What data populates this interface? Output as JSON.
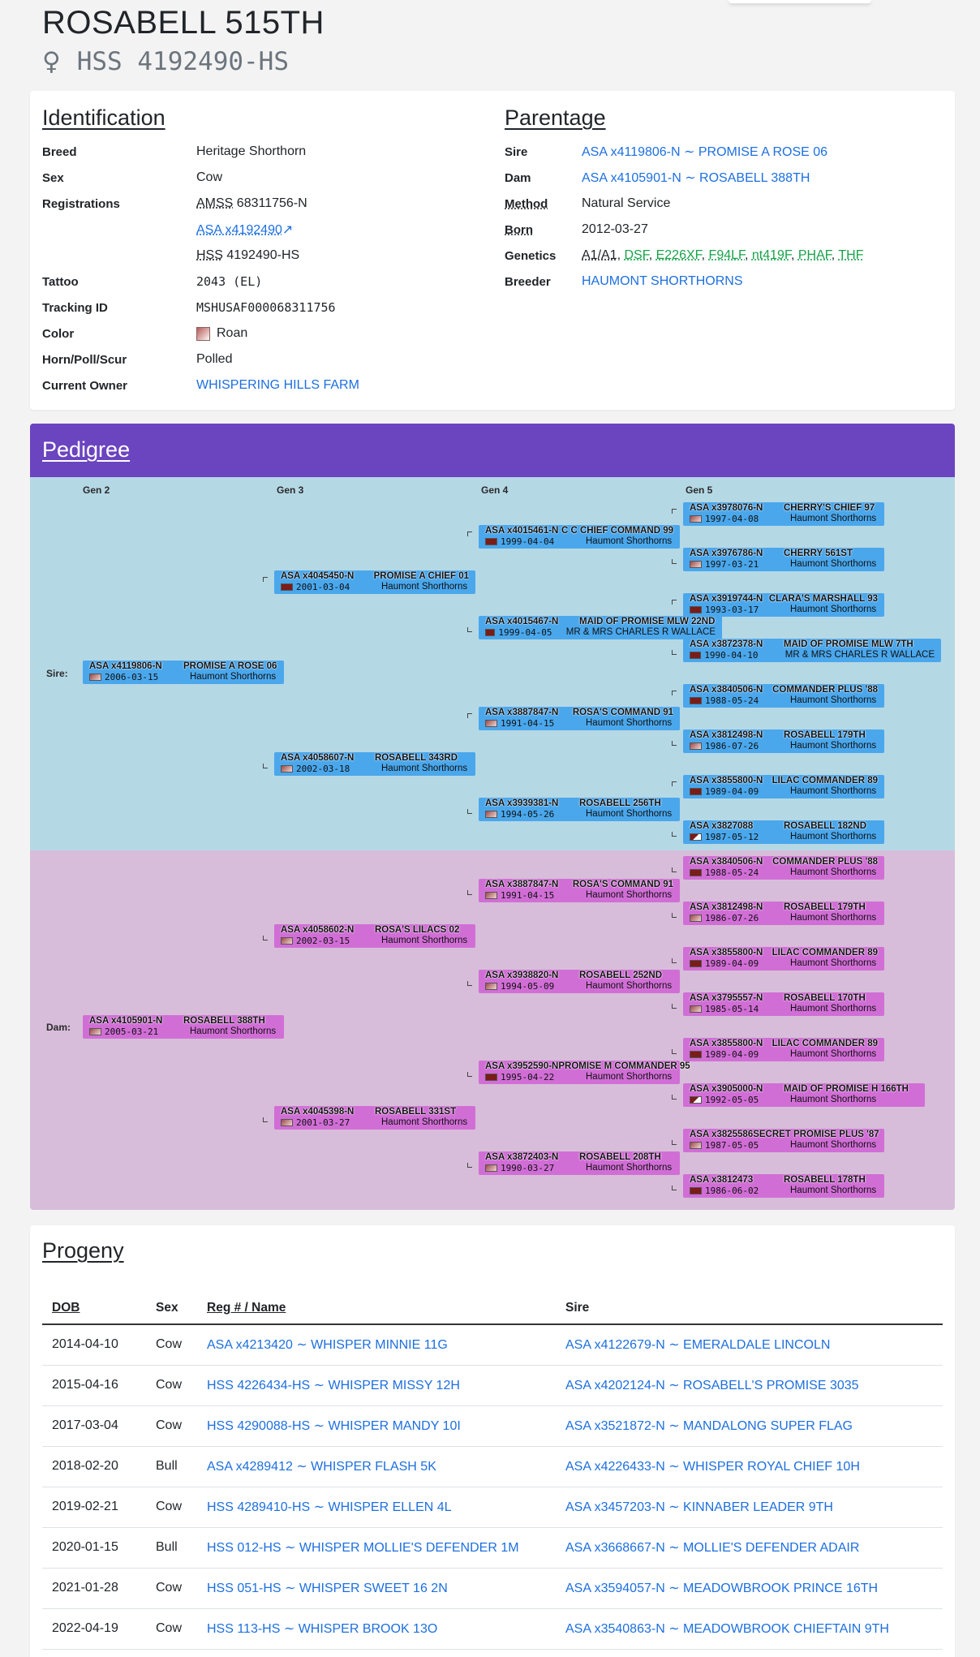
{
  "header": {
    "title": "ROSABELL 515TH",
    "sex_symbol": "♀",
    "id": "HSS 4192490-HS"
  },
  "identification": {
    "heading": "Identification",
    "breed_label": "Breed",
    "breed": "Heritage Shorthorn",
    "sex_label": "Sex",
    "sex": "Cow",
    "reg_label": "Registrations",
    "reg1_prefix": "AMSS",
    "reg1_value": "68311756-N",
    "reg2": "ASA x4192490",
    "reg3_prefix": "HSS",
    "reg3_value": "4192490-HS",
    "tattoo_label": "Tattoo",
    "tattoo": "2043 (EL)",
    "tracking_label": "Tracking ID",
    "tracking": "MSHUSAF000068311756",
    "color_label": "Color",
    "color": "Roan",
    "horn_label": "Horn/Poll/Scur",
    "horn": "Polled",
    "owner_label": "Current Owner",
    "owner": "WHISPERING HILLS FARM"
  },
  "parentage": {
    "heading": "Parentage",
    "sire_label": "Sire",
    "sire": "ASA x4119806-N ∼ PROMISE A ROSE 06",
    "dam_label": "Dam",
    "dam": "ASA x4105901-N ∼ ROSABELL 388TH",
    "method_label": "Method",
    "method": "Natural Service",
    "born_label": "Born",
    "born": "2012-03-27",
    "genetics_label": "Genetics",
    "genetics": [
      "A1/A1",
      "DSF",
      "E226XF",
      "F94LF",
      "nt419F",
      "PHAF",
      "THF"
    ],
    "breeder_label": "Breeder",
    "breeder": "HAUMONT SHORTHORNS"
  },
  "pedigree": {
    "heading": "Pedigree",
    "gen_labels": [
      "Gen 2",
      "Gen 3",
      "Gen 4",
      "Gen 5"
    ],
    "sire_label": "Sire:",
    "dam_label": "Dam:",
    "nodes": [
      {
        "reg": "ASA x4119806-N",
        "name": "PROMISE A ROSE 06",
        "date": "2006-03-15",
        "breeder": "Haumont Shorthorns"
      },
      {
        "reg": "ASA x4045450-N",
        "name": "PROMISE A CHIEF 01",
        "date": "2001-03-04",
        "breeder": "Haumont Shorthorns"
      },
      {
        "reg": "ASA x4058607-N",
        "name": "ROSABELL 343RD",
        "date": "2002-03-18",
        "breeder": "Haumont Shorthorns"
      },
      {
        "reg": "ASA x4015461-N",
        "name": "C C CHIEF COMMAND 99",
        "date": "1999-04-04",
        "breeder": "Haumont Shorthorns"
      },
      {
        "reg": "ASA x4015467-N",
        "name": "MAID OF PROMISE MLW 22ND",
        "date": "1999-04-05",
        "breeder": "MR & MRS CHARLES R WALLACE"
      },
      {
        "reg": "ASA x3887847-N",
        "name": "ROSA'S COMMAND 91",
        "date": "1991-04-15",
        "breeder": "Haumont Shorthorns"
      },
      {
        "reg": "ASA x3939381-N",
        "name": "ROSABELL 256TH",
        "date": "1994-05-26",
        "breeder": "Haumont Shorthorns"
      },
      {
        "reg": "ASA x3978076-N",
        "name": "CHERRY'S CHIEF 97",
        "date": "1997-04-08",
        "breeder": "Haumont Shorthorns"
      },
      {
        "reg": "ASA x3976786-N",
        "name": "CHERRY 561ST",
        "date": "1997-03-21",
        "breeder": "Haumont Shorthorns"
      },
      {
        "reg": "ASA x3919744-N",
        "name": "CLARA'S MARSHALL 93",
        "date": "1993-03-17",
        "breeder": "Haumont Shorthorns"
      },
      {
        "reg": "ASA x3872378-N",
        "name": "MAID OF PROMISE MLW 7TH",
        "date": "1990-04-10",
        "breeder": "MR & MRS CHARLES R WALLACE"
      },
      {
        "reg": "ASA x3840506-N",
        "name": "COMMANDER PLUS '88",
        "date": "1988-05-24",
        "breeder": "Haumont Shorthorns"
      },
      {
        "reg": "ASA x3812498-N",
        "name": "ROSABELL 179TH",
        "date": "1986-07-26",
        "breeder": "Haumont Shorthorns"
      },
      {
        "reg": "ASA x3855800-N",
        "name": "LILAC COMMANDER 89",
        "date": "1989-04-09",
        "breeder": "Haumont Shorthorns"
      },
      {
        "reg": "ASA x3827088",
        "name": "ROSABELL 182ND",
        "date": "1987-05-12",
        "breeder": "Haumont Shorthorns"
      },
      {
        "reg": "ASA x4105901-N",
        "name": "ROSABELL 388TH",
        "date": "2005-03-21",
        "breeder": "Haumont Shorthorns"
      },
      {
        "reg": "ASA x4058602-N",
        "name": "ROSA'S LILACS 02",
        "date": "2002-03-15",
        "breeder": "Haumont Shorthorns"
      },
      {
        "reg": "ASA x4045398-N",
        "name": "ROSABELL 331ST",
        "date": "2001-03-27",
        "breeder": "Haumont Shorthorns"
      },
      {
        "reg": "ASA x3887847-N",
        "name": "ROSA'S COMMAND 91",
        "date": "1991-04-15",
        "breeder": "Haumont Shorthorns"
      },
      {
        "reg": "ASA x3938820-N",
        "name": "ROSABELL 252ND",
        "date": "1994-05-09",
        "breeder": "Haumont Shorthorns"
      },
      {
        "reg": "ASA x3952590-N",
        "name": "PROMISE M COMMANDER 95",
        "date": "1995-04-22",
        "breeder": "Haumont Shorthorns"
      },
      {
        "reg": "ASA x3872403-N",
        "name": "ROSABELL 208TH",
        "date": "1990-03-27",
        "breeder": "Haumont Shorthorns"
      },
      {
        "reg": "ASA x3840506-N",
        "name": "COMMANDER PLUS '88",
        "date": "1988-05-24",
        "breeder": "Haumont Shorthorns"
      },
      {
        "reg": "ASA x3812498-N",
        "name": "ROSABELL 179TH",
        "date": "1986-07-26",
        "breeder": "Haumont Shorthorns"
      },
      {
        "reg": "ASA x3855800-N",
        "name": "LILAC COMMANDER 89",
        "date": "1989-04-09",
        "breeder": "Haumont Shorthorns"
      },
      {
        "reg": "ASA x3795557-N",
        "name": "ROSABELL 170TH",
        "date": "1985-05-14",
        "breeder": "Haumont Shorthorns"
      },
      {
        "reg": "ASA x3855800-N",
        "name": "LILAC COMMANDER 89",
        "date": "1989-04-09",
        "breeder": "Haumont Shorthorns"
      },
      {
        "reg": "ASA x3905000-N",
        "name": "MAID OF PROMISE H 166TH",
        "date": "1992-05-05",
        "breeder": "Haumont Shorthorns"
      },
      {
        "reg": "ASA x3825586",
        "name": "SECRET PROMISE PLUS '87",
        "date": "1987-05-05",
        "breeder": "Haumont Shorthorns"
      },
      {
        "reg": "ASA x3812473",
        "name": "ROSABELL 178TH",
        "date": "1986-06-02",
        "breeder": "Haumont Shorthorns"
      }
    ]
  },
  "progeny": {
    "heading": "Progeny",
    "columns": [
      "DOB",
      "Sex",
      "Reg # / Name",
      "Sire"
    ],
    "rows": [
      {
        "dob": "2014-04-10",
        "sex": "Cow",
        "reg": "ASA x4213420 ∼ WHISPER MINNIE 11G",
        "sire": "ASA x4122679-N ∼ EMERALDALE LINCOLN"
      },
      {
        "dob": "2015-04-16",
        "sex": "Cow",
        "reg": "HSS 4226434-HS ∼ WHISPER MISSY 12H",
        "sire": "ASA x4202124-N ∼ ROSABELL'S PROMISE 3035"
      },
      {
        "dob": "2017-03-04",
        "sex": "Cow",
        "reg": "HSS 4290088-HS ∼ WHISPER MANDY 10I",
        "sire": "ASA x3521872-N ∼ MANDALONG SUPER FLAG"
      },
      {
        "dob": "2018-02-20",
        "sex": "Bull",
        "reg": "ASA x4289412 ∼ WHISPER FLASH 5K",
        "sire": "ASA x4226433-N ∼ WHISPER ROYAL CHIEF 10H"
      },
      {
        "dob": "2019-02-21",
        "sex": "Cow",
        "reg": "HSS 4289410-HS ∼ WHISPER ELLEN 4L",
        "sire": "ASA x3457203-N ∼ KINNABER LEADER 9TH"
      },
      {
        "dob": "2020-01-15",
        "sex": "Bull",
        "reg": "HSS 012-HS ∼ WHISPER MOLLIE'S DEFENDER 1M",
        "sire": "ASA x3668667-N ∼ MOLLIE'S DEFENDER ADAIR"
      },
      {
        "dob": "2021-01-28",
        "sex": "Cow",
        "reg": "HSS 051-HS ∼ WHISPER SWEET 16 2N",
        "sire": "ASA x3594057-N ∼ MEADOWBROOK PRINCE 16TH"
      },
      {
        "dob": "2022-04-19",
        "sex": "Cow",
        "reg": "HSS 113-HS ∼ WHISPER BROOK 13O",
        "sire": "ASA x3540863-N ∼ MEADOWBROOK CHIEFTAIN 9TH"
      }
    ]
  }
}
